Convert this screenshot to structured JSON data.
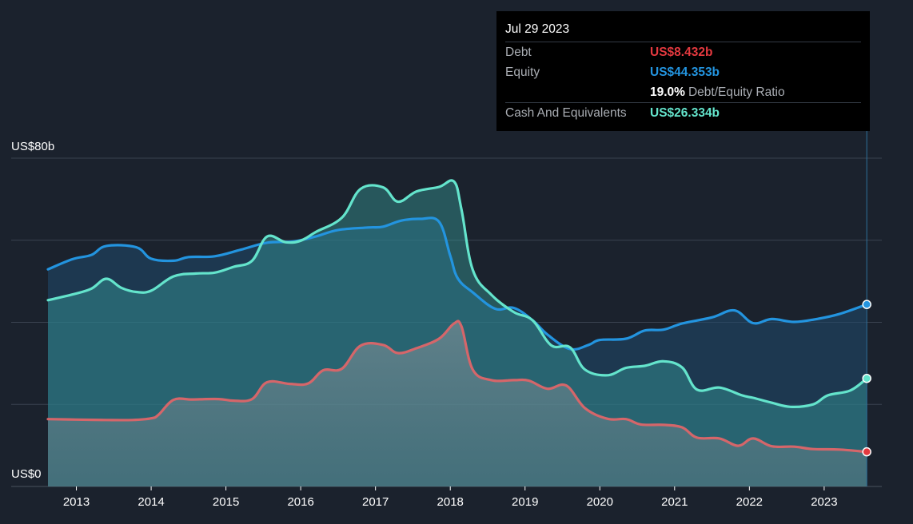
{
  "tooltip": {
    "date": "Jul 29 2023",
    "debt_label": "Debt",
    "debt_value": "US$8.432b",
    "equity_label": "Equity",
    "equity_value": "US$44.353b",
    "ratio_value": "19.0%",
    "ratio_label": "Debt/Equity Ratio",
    "cash_label": "Cash And Equivalents",
    "cash_value": "US$26.334b"
  },
  "colors": {
    "background": "#1b222d",
    "debt": "#d5666a",
    "debt_marker": "#e4393f",
    "equity": "#2394df",
    "cash": "#64e4cc",
    "grid": "#3a4350",
    "tooltip_bg": "#000000"
  },
  "chart_data": {
    "type": "area",
    "ylabel_top": "US$80b",
    "ylabel_bottom": "US$0",
    "ylim": [
      0,
      80
    ],
    "xlim": [
      2012.62,
      2023.6
    ],
    "x_ticks": [
      "2013",
      "2014",
      "2015",
      "2016",
      "2017",
      "2018",
      "2019",
      "2020",
      "2021",
      "2022",
      "2023"
    ],
    "grid": true,
    "series": [
      {
        "name": "Equity",
        "points": [
          [
            2012.62,
            52.9
          ],
          [
            2012.95,
            55.4
          ],
          [
            2013.2,
            56.4
          ],
          [
            2013.4,
            58.6
          ],
          [
            2013.8,
            58.3
          ],
          [
            2014.0,
            55.5
          ],
          [
            2014.3,
            55.0
          ],
          [
            2014.5,
            55.9
          ],
          [
            2014.85,
            56.1
          ],
          [
            2015.2,
            57.7
          ],
          [
            2015.55,
            59.4
          ],
          [
            2015.9,
            59.7
          ],
          [
            2016.2,
            60.9
          ],
          [
            2016.5,
            62.5
          ],
          [
            2016.9,
            63.1
          ],
          [
            2017.1,
            63.3
          ],
          [
            2017.35,
            64.8
          ],
          [
            2017.6,
            65.2
          ],
          [
            2017.85,
            64.5
          ],
          [
            2018.0,
            56.2
          ],
          [
            2018.1,
            50.7
          ],
          [
            2018.3,
            47.3
          ],
          [
            2018.6,
            43.3
          ],
          [
            2018.85,
            43.5
          ],
          [
            2019.1,
            40.5
          ],
          [
            2019.3,
            37.0
          ],
          [
            2019.6,
            33.5
          ],
          [
            2019.85,
            34.5
          ],
          [
            2020.0,
            35.7
          ],
          [
            2020.35,
            36.0
          ],
          [
            2020.6,
            38.0
          ],
          [
            2020.85,
            38.2
          ],
          [
            2021.1,
            39.7
          ],
          [
            2021.5,
            41.2
          ],
          [
            2021.8,
            42.9
          ],
          [
            2022.05,
            39.8
          ],
          [
            2022.3,
            40.8
          ],
          [
            2022.6,
            40.1
          ],
          [
            2022.9,
            40.8
          ],
          [
            2023.2,
            42.0
          ],
          [
            2023.57,
            44.353
          ]
        ]
      },
      {
        "name": "Cash And Equivalents",
        "points": [
          [
            2012.62,
            45.4
          ],
          [
            2012.95,
            46.8
          ],
          [
            2013.2,
            48.2
          ],
          [
            2013.4,
            50.6
          ],
          [
            2013.6,
            48.4
          ],
          [
            2013.8,
            47.4
          ],
          [
            2014.0,
            47.7
          ],
          [
            2014.3,
            51.2
          ],
          [
            2014.6,
            51.9
          ],
          [
            2014.85,
            52.1
          ],
          [
            2015.1,
            53.5
          ],
          [
            2015.35,
            55.0
          ],
          [
            2015.55,
            60.9
          ],
          [
            2015.8,
            59.5
          ],
          [
            2016.0,
            59.9
          ],
          [
            2016.2,
            62.0
          ],
          [
            2016.55,
            65.5
          ],
          [
            2016.8,
            72.5
          ],
          [
            2017.1,
            72.9
          ],
          [
            2017.3,
            69.4
          ],
          [
            2017.55,
            71.9
          ],
          [
            2017.85,
            73.0
          ],
          [
            2018.05,
            74.3
          ],
          [
            2018.15,
            67.5
          ],
          [
            2018.3,
            52.8
          ],
          [
            2018.55,
            46.7
          ],
          [
            2018.85,
            42.5
          ],
          [
            2019.1,
            40.5
          ],
          [
            2019.35,
            34.4
          ],
          [
            2019.6,
            33.9
          ],
          [
            2019.8,
            28.5
          ],
          [
            2020.1,
            27.1
          ],
          [
            2020.35,
            28.9
          ],
          [
            2020.6,
            29.4
          ],
          [
            2020.85,
            30.5
          ],
          [
            2021.1,
            29.0
          ],
          [
            2021.3,
            23.6
          ],
          [
            2021.6,
            24.1
          ],
          [
            2021.9,
            22.2
          ],
          [
            2022.05,
            21.6
          ],
          [
            2022.3,
            20.4
          ],
          [
            2022.55,
            19.4
          ],
          [
            2022.85,
            20.0
          ],
          [
            2023.05,
            22.2
          ],
          [
            2023.35,
            23.4
          ],
          [
            2023.57,
            26.334
          ]
        ]
      },
      {
        "name": "Debt",
        "points": [
          [
            2012.62,
            16.4
          ],
          [
            2013.0,
            16.3
          ],
          [
            2013.4,
            16.2
          ],
          [
            2013.75,
            16.2
          ],
          [
            2014.0,
            16.6
          ],
          [
            2014.1,
            17.5
          ],
          [
            2014.3,
            21.1
          ],
          [
            2014.55,
            21.2
          ],
          [
            2014.9,
            21.3
          ],
          [
            2015.1,
            20.9
          ],
          [
            2015.35,
            21.3
          ],
          [
            2015.55,
            25.4
          ],
          [
            2015.85,
            25.0
          ],
          [
            2016.1,
            25.1
          ],
          [
            2016.3,
            28.3
          ],
          [
            2016.55,
            28.7
          ],
          [
            2016.8,
            34.3
          ],
          [
            2017.1,
            34.5
          ],
          [
            2017.3,
            32.5
          ],
          [
            2017.55,
            33.7
          ],
          [
            2017.85,
            36.0
          ],
          [
            2018.05,
            39.7
          ],
          [
            2018.15,
            39.0
          ],
          [
            2018.3,
            28.5
          ],
          [
            2018.55,
            25.9
          ],
          [
            2018.85,
            25.9
          ],
          [
            2019.05,
            25.8
          ],
          [
            2019.3,
            23.8
          ],
          [
            2019.55,
            24.6
          ],
          [
            2019.8,
            19.1
          ],
          [
            2020.1,
            16.5
          ],
          [
            2020.35,
            16.4
          ],
          [
            2020.55,
            15.1
          ],
          [
            2020.85,
            15.0
          ],
          [
            2021.1,
            14.4
          ],
          [
            2021.3,
            11.9
          ],
          [
            2021.6,
            11.7
          ],
          [
            2021.85,
            9.9
          ],
          [
            2022.05,
            11.7
          ],
          [
            2022.3,
            9.8
          ],
          [
            2022.6,
            9.7
          ],
          [
            2022.85,
            9.1
          ],
          [
            2023.2,
            9.0
          ],
          [
            2023.57,
            8.432
          ]
        ]
      }
    ]
  }
}
